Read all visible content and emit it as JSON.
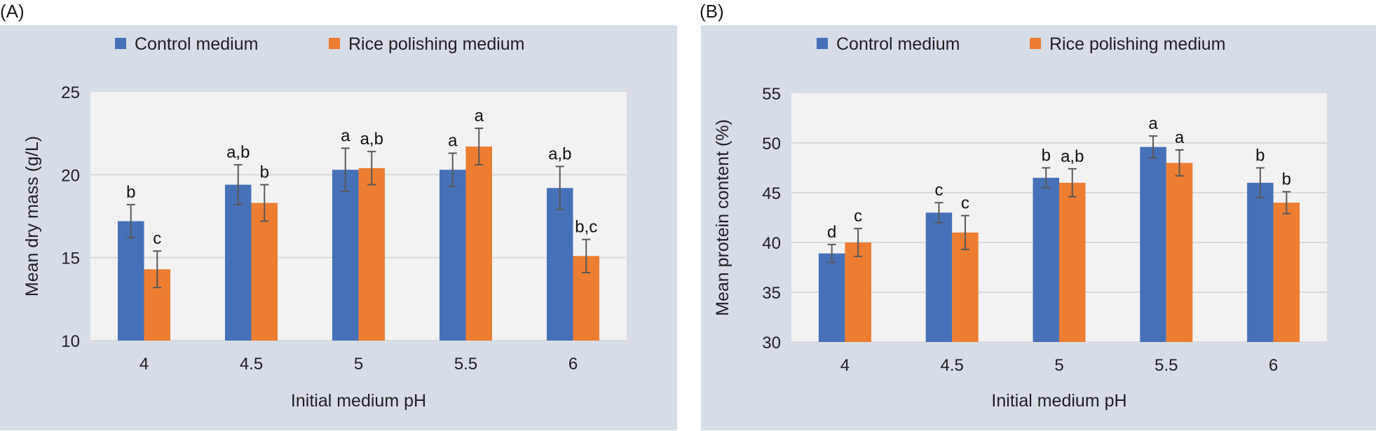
{
  "panels": [
    {
      "label": "(A)"
    },
    {
      "label": "(B)"
    }
  ],
  "colors": {
    "control": "#4671b8",
    "rice": "#ed7d31",
    "plot_bg": "#f2f2f2",
    "panel_bg": "#d6dde7",
    "grid": "#d9d9d9",
    "error_bar": "#595959"
  },
  "chart_data": [
    {
      "type": "bar",
      "panel": "(A)",
      "title": "",
      "xlabel": "Initial medium pH",
      "ylabel": "Mean dry mass (g/L)",
      "ylim": [
        10,
        25
      ],
      "yticks": [
        "10",
        "15",
        "20",
        "25"
      ],
      "categories": [
        "4",
        "4.5",
        "5",
        "5.5",
        "6"
      ],
      "grid": true,
      "legend_position": "top",
      "series": [
        {
          "name": "Control medium",
          "values": [
            17.2,
            19.4,
            20.3,
            20.3,
            19.2
          ],
          "errors": [
            1.0,
            1.2,
            1.3,
            1.0,
            1.3
          ],
          "labels": [
            "b",
            "a,b",
            "a",
            "a",
            "a,b"
          ]
        },
        {
          "name": "Rice polishing medium",
          "values": [
            14.3,
            18.3,
            20.4,
            21.7,
            15.1
          ],
          "errors": [
            1.1,
            1.1,
            1.0,
            1.1,
            1.0
          ],
          "labels": [
            "c",
            "b",
            "a,b",
            "a",
            "b,c"
          ]
        }
      ]
    },
    {
      "type": "bar",
      "panel": "(B)",
      "title": "",
      "xlabel": "Initial medium pH",
      "ylabel": "Mean protein content (%)",
      "ylim": [
        30,
        55
      ],
      "yticks": [
        "30",
        "35",
        "40",
        "45",
        "50",
        "55"
      ],
      "categories": [
        "4",
        "4.5",
        "5",
        "5.5",
        "6"
      ],
      "grid": true,
      "legend_position": "top",
      "series": [
        {
          "name": "Control medium",
          "values": [
            38.9,
            43.0,
            46.5,
            49.6,
            46.0
          ],
          "errors": [
            0.9,
            1.0,
            1.0,
            1.1,
            1.5
          ],
          "labels": [
            "d",
            "c",
            "b",
            "a",
            "b"
          ]
        },
        {
          "name": "Rice polishing medium",
          "values": [
            40.0,
            41.0,
            46.0,
            48.0,
            44.0
          ],
          "errors": [
            1.4,
            1.7,
            1.4,
            1.3,
            1.1
          ],
          "labels": [
            "c",
            "c",
            "a,b",
            "a",
            "b"
          ]
        }
      ]
    }
  ]
}
